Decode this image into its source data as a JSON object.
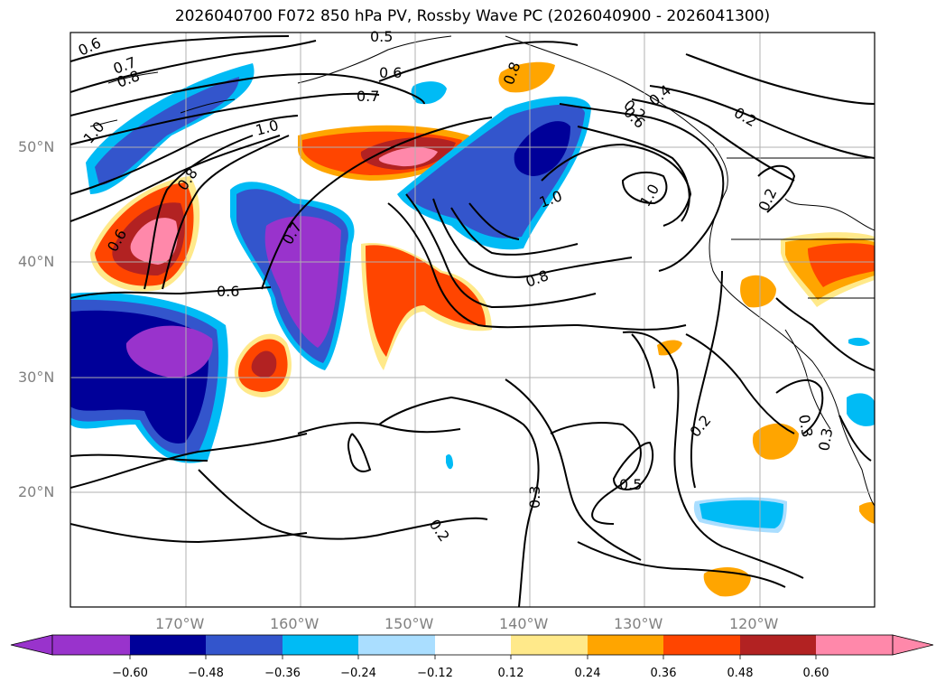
{
  "title": "2026040700 F072 850 hPa PV, Rossby Wave PC (2026040900 - 2026041300)",
  "lat_labels": [
    "50°N",
    "40°N",
    "30°N",
    "20°N"
  ],
  "lon_labels": [
    "170°W",
    "160°W",
    "150°W",
    "140°W",
    "130°W",
    "120°W"
  ],
  "colorbar": {
    "ticks": [
      "−0.60",
      "−0.48",
      "−0.36",
      "−0.24",
      "−0.12",
      "0.12",
      "0.24",
      "0.36",
      "0.48",
      "0.60"
    ],
    "colors": [
      "#9933cc",
      "#000099",
      "#3355cc",
      "#00bbf5",
      "#aadeff",
      "#ffffff",
      "#ffe98a",
      "#ffa500",
      "#ff4500",
      "#b22222",
      "#ff88aa"
    ]
  },
  "contour_labels": [
    "0.6",
    "0.7",
    "0.8",
    "1.0",
    "0.8",
    "0.6",
    "0.7",
    "0.6",
    "1.0",
    "0.7",
    "0.6",
    "0.8",
    "1.0",
    "0.8",
    "1.0",
    "0.6",
    "0.4",
    "0.5",
    "0.2",
    "0.2",
    "0.2",
    "0.2",
    "0.3",
    "0.3",
    "0.5",
    "0.2",
    "0.3"
  ]
}
